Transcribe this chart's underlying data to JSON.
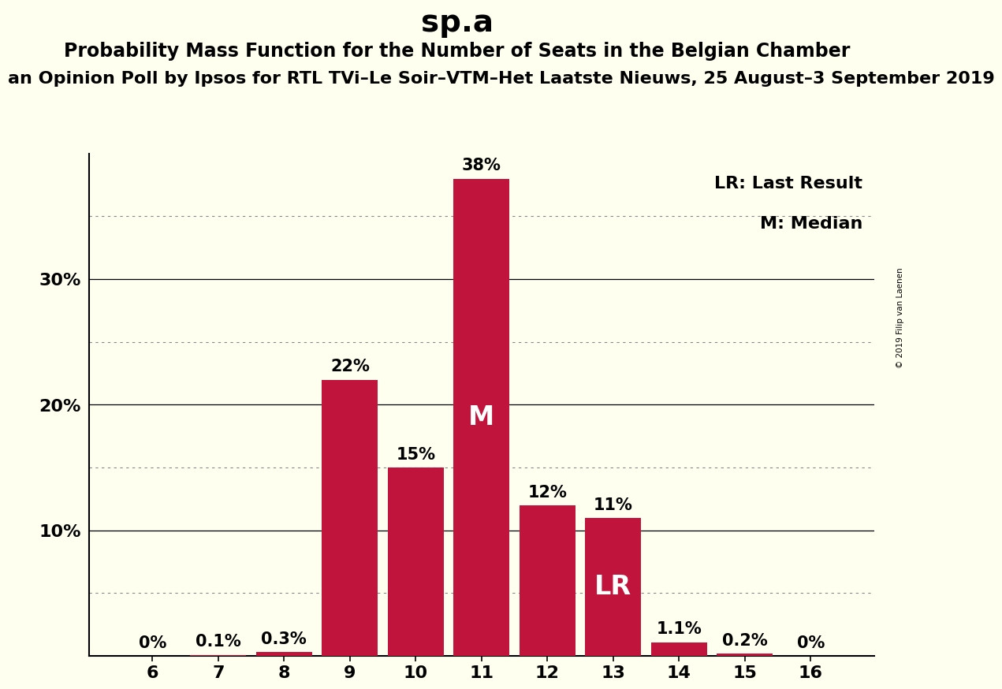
{
  "title": "sp.a",
  "subtitle1": "Probability Mass Function for the Number of Seats in the Belgian Chamber",
  "subtitle2": "an Opinion Poll by Ipsos for RTL TVi–Le Soir–VTM–Het Laatste Nieuws, 25 August–3 September 2019",
  "watermark": "© 2019 Filip van Laenen",
  "categories": [
    6,
    7,
    8,
    9,
    10,
    11,
    12,
    13,
    14,
    15,
    16
  ],
  "values": [
    0.0,
    0.1,
    0.3,
    22.0,
    15.0,
    38.0,
    12.0,
    11.0,
    1.1,
    0.2,
    0.0
  ],
  "labels": [
    "0%",
    "0.1%",
    "0.3%",
    "22%",
    "15%",
    "38%",
    "12%",
    "11%",
    "1.1%",
    "0.2%",
    "0%"
  ],
  "bar_color": "#c0143c",
  "background_color": "#fffff0",
  "median_bar": 11,
  "last_result_bar": 13,
  "legend_lr": "LR: Last Result",
  "legend_m": "M: Median",
  "ylim": [
    0,
    40
  ],
  "yticks": [
    10,
    20,
    30
  ],
  "ytick_labels": [
    "10%",
    "20%",
    "30%"
  ],
  "dotted_gridlines": [
    5,
    15,
    25,
    35
  ],
  "solid_gridlines": [
    10,
    20,
    30
  ],
  "title_fontsize": 28,
  "subtitle1_fontsize": 17,
  "subtitle2_fontsize": 16,
  "axis_label_fontsize": 16,
  "bar_label_fontsize": 15,
  "legend_fontsize": 16,
  "median_label_fontsize": 24,
  "lr_label_fontsize": 24
}
